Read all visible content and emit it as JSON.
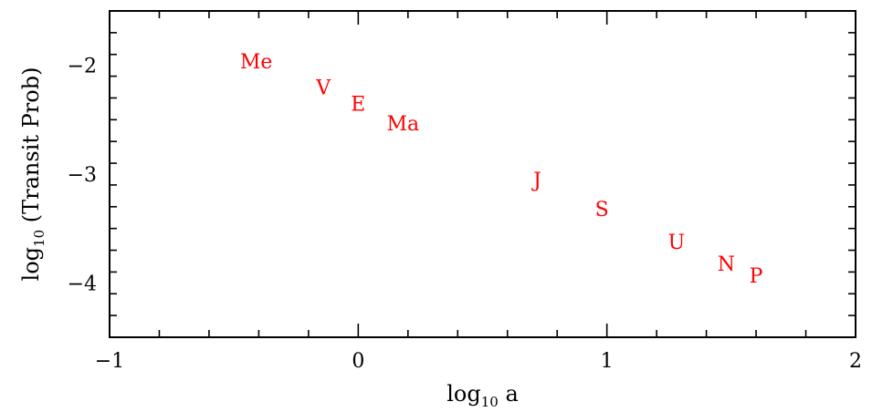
{
  "chart_data": {
    "type": "scatter",
    "xlabel": "log",
    "xlabel_sub": "10",
    "xlabel_tail": " a",
    "ylabel": "log",
    "ylabel_sub": "10",
    "ylabel_tail": " (Transit Prob)",
    "xlim": [
      -1,
      2
    ],
    "ylim": [
      -4.5,
      -1.5
    ],
    "x_ticks": [
      -1,
      0,
      1,
      2
    ],
    "x_tick_labels": [
      "−1",
      "0",
      "1",
      "2"
    ],
    "y_ticks": [
      -2,
      -3,
      -4
    ],
    "y_tick_labels": [
      "−2",
      "−3",
      "−4"
    ],
    "x_minor_step": 0.2,
    "y_minor_step": 0.2,
    "grid": false,
    "marker_color": "#ff0000",
    "points": [
      {
        "label": "Me",
        "x": -0.41,
        "y": -1.96
      },
      {
        "label": "V",
        "x": -0.14,
        "y": -2.2
      },
      {
        "label": "E",
        "x": 0.0,
        "y": -2.35
      },
      {
        "label": "Ma",
        "x": 0.18,
        "y": -2.53
      },
      {
        "label": "J",
        "x": 0.72,
        "y": -3.05
      },
      {
        "label": "S",
        "x": 0.98,
        "y": -3.32
      },
      {
        "label": "U",
        "x": 1.28,
        "y": -3.62
      },
      {
        "label": "N",
        "x": 1.48,
        "y": -3.82
      },
      {
        "label": "P",
        "x": 1.6,
        "y": -3.93
      }
    ]
  }
}
